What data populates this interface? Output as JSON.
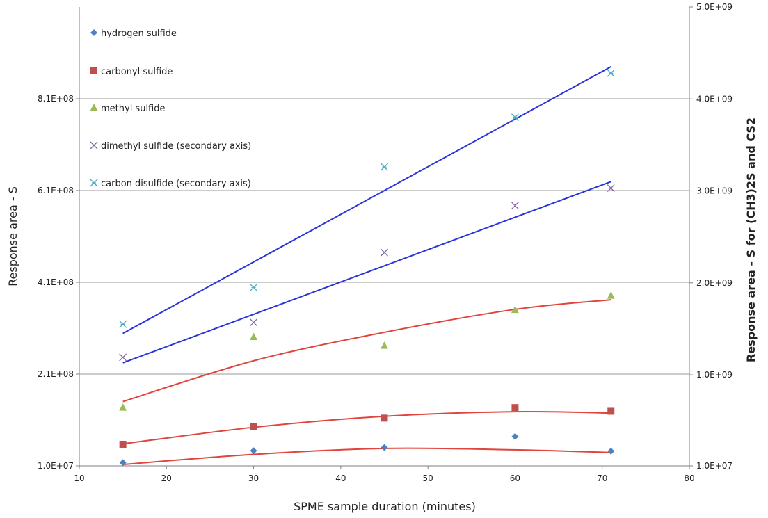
{
  "chart_data": {
    "type": "scatter",
    "xlabel": "SPME sample duration (minutes)",
    "ylabel": "Response area - S",
    "y2label": "Response area - S for (CH3)2S and CS2",
    "xlim": [
      10,
      80
    ],
    "ylim": [
      10000000,
      1010000000
    ],
    "y2lim": [
      10000000,
      5000000000
    ],
    "x_ticks": [
      "10",
      "20",
      "30",
      "40",
      "50",
      "60",
      "70",
      "80"
    ],
    "y_ticks": [
      "1.0E+07",
      "2.1E+08",
      "4.1E+08",
      "6.1E+08",
      "8.1E+08"
    ],
    "y2_ticks": [
      "1.0E+07",
      "1.0E+09",
      "2.0E+09",
      "3.0E+09",
      "4.0E+09",
      "5.0E+09"
    ],
    "grid": "horizontal major gridlines",
    "legend_position": "top-left",
    "ylabel_color": "#e8473a",
    "y2label_color": "#2a34d8",
    "series": [
      {
        "name": "hydrogen sulfide",
        "axis": "primary",
        "marker": "diamond",
        "color": "#4f81bd",
        "x": [
          15,
          30,
          45,
          60,
          71
        ],
        "y": [
          17000000,
          43000000,
          50000000,
          74000000,
          42000000
        ],
        "trendline": {
          "type": "polynomial",
          "color": "#e0443c",
          "y": [
            13000000,
            35000000,
            48000000,
            45000000,
            39000000
          ]
        }
      },
      {
        "name": "carbonyl sulfide",
        "axis": "primary",
        "marker": "square",
        "color": "#c0504d",
        "x": [
          15,
          30,
          45,
          60,
          71
        ],
        "y": [
          57000000,
          95000000,
          114000000,
          137000000,
          129000000
        ],
        "trendline": {
          "type": "polynomial",
          "color": "#e0443c",
          "y": [
            58000000,
            94000000,
            118000000,
            128000000,
            125000000
          ]
        }
      },
      {
        "name": "methyl sulfide",
        "axis": "primary",
        "marker": "triangle",
        "color": "#9bbb59",
        "x": [
          15,
          30,
          45,
          60,
          71
        ],
        "y": [
          137000000,
          291000000,
          272000000,
          350000000,
          381000000
        ],
        "trendline": {
          "type": "polynomial",
          "color": "#e0443c",
          "y": [
            150000000,
            239000000,
            301000000,
            351000000,
            372000000
          ]
        }
      },
      {
        "name": "dimethyl sulfide (secondary axis)",
        "axis": "secondary",
        "marker": "x",
        "color": "#8064a2",
        "x": [
          15,
          30,
          45,
          60,
          71
        ],
        "y": [
          1190000000,
          1570000000,
          2330000000,
          2840000000,
          3030000000
        ],
        "trendline": {
          "type": "linear",
          "color": "#2a34d8",
          "y": [
            1130000000,
            1800000000,
            2400000000,
            3000000000,
            3100000000
          ]
        }
      },
      {
        "name": "carbon disulfide (secondary axis)",
        "axis": "secondary",
        "marker": "star",
        "color": "#4bacc6",
        "x": [
          15,
          30,
          45,
          60,
          71
        ],
        "y": [
          1550000000,
          1950000000,
          3260000000,
          3800000000,
          4280000000
        ],
        "trendline": {
          "type": "linear",
          "color": "#2a34d8",
          "y": [
            1450000000,
            2450000000,
            3450000000,
            4350000000,
            4350000000
          ]
        }
      }
    ]
  }
}
